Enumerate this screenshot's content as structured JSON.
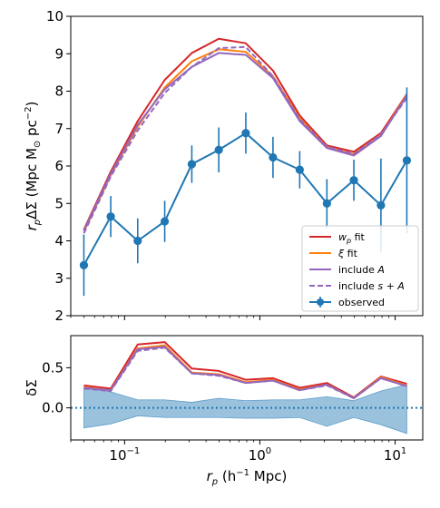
{
  "chart_data": [
    {
      "type": "line",
      "xscale": "log",
      "xlim": [
        0.04,
        16
      ],
      "ylim": [
        2,
        10
      ],
      "yticks": [
        2,
        3,
        4,
        5,
        6,
        7,
        8,
        9,
        10
      ],
      "ylabel_parts": [
        "r",
        "p",
        "ΔΣ (Mpc M",
        "⊙",
        " pc",
        "−2",
        ")"
      ],
      "legend_position": "lower right",
      "x": [
        0.05,
        0.079,
        0.125,
        0.198,
        0.314,
        0.497,
        0.787,
        1.25,
        1.97,
        3.13,
        4.95,
        7.85,
        12.2
      ],
      "series": [
        {
          "key": "wp",
          "label_parts": [
            "w",
            "p",
            " fit"
          ],
          "color": "#d62728",
          "style": "solid",
          "values": [
            4.3,
            5.85,
            7.2,
            8.3,
            9.02,
            9.4,
            9.28,
            8.55,
            7.35,
            6.55,
            6.38,
            6.88,
            7.92
          ]
        },
        {
          "key": "xi",
          "label_parts": [
            "ξ",
            "",
            " fit"
          ],
          "color": "#ff7f0e",
          "style": "solid",
          "values": [
            4.25,
            5.75,
            7.05,
            8.1,
            8.8,
            9.12,
            9.05,
            8.4,
            7.28,
            6.5,
            6.32,
            6.82,
            7.9
          ]
        },
        {
          "key": "A",
          "label_parts": [
            "include ",
            "A",
            ""
          ],
          "color": "#9467bd",
          "style": "solid",
          "values": [
            4.27,
            5.8,
            7.1,
            8.05,
            8.65,
            9.02,
            8.97,
            8.35,
            7.2,
            6.48,
            6.28,
            6.8,
            7.88
          ]
        },
        {
          "key": "sA",
          "label_parts": [
            "include ",
            "s + A",
            ""
          ],
          "color": "#9467bd",
          "style": "dashed",
          "values": [
            4.2,
            5.72,
            6.95,
            7.95,
            8.65,
            9.15,
            9.18,
            8.4,
            7.25,
            6.52,
            6.32,
            6.85,
            7.82
          ]
        }
      ],
      "observed": {
        "label": "observed",
        "color": "#1f77b4",
        "values": [
          3.35,
          4.65,
          4.0,
          4.52,
          6.05,
          6.43,
          6.88,
          6.23,
          5.9,
          5.0,
          5.62,
          4.95,
          6.15
        ],
        "errors": [
          0.82,
          0.55,
          0.6,
          0.55,
          0.5,
          0.6,
          0.55,
          0.55,
          0.5,
          0.65,
          0.55,
          1.25,
          1.95
        ]
      }
    },
    {
      "type": "line",
      "xscale": "log",
      "xlim": [
        0.04,
        16
      ],
      "ylim": [
        -0.4,
        0.9
      ],
      "yticks": [
        0.0,
        0.5
      ],
      "ytick_labels": [
        "0.0",
        "0.5"
      ],
      "ylabel": "δΣ",
      "xticks": [
        0.1,
        1,
        10
      ],
      "xtick_labels": [
        [
          "10",
          "−1"
        ],
        [
          "10",
          "0"
        ],
        [
          "10",
          "1"
        ]
      ],
      "xlabel_parts": [
        "r",
        "p",
        " (h",
        "−1",
        " Mpc)"
      ],
      "zero_line": {
        "color": "#1f77b4",
        "style": "dotted"
      },
      "band": {
        "color": "#1f77b4",
        "opacity": 0.45,
        "upper": [
          0.25,
          0.2,
          0.1,
          0.1,
          0.07,
          0.12,
          0.09,
          0.1,
          0.1,
          0.14,
          0.09,
          0.21,
          0.29
        ],
        "lower": [
          -0.25,
          -0.2,
          -0.1,
          -0.12,
          -0.12,
          -0.12,
          -0.13,
          -0.13,
          -0.12,
          -0.23,
          -0.12,
          -0.21,
          -0.32
        ]
      },
      "series": [
        {
          "color": "#d62728",
          "style": "solid",
          "values": [
            0.28,
            0.24,
            0.79,
            0.82,
            0.49,
            0.46,
            0.35,
            0.37,
            0.25,
            0.31,
            0.13,
            0.39,
            0.3
          ]
        },
        {
          "color": "#ff7f0e",
          "style": "solid",
          "values": [
            0.26,
            0.22,
            0.74,
            0.78,
            0.44,
            0.42,
            0.32,
            0.35,
            0.23,
            0.29,
            0.12,
            0.38,
            0.28
          ]
        },
        {
          "color": "#9467bd",
          "style": "solid",
          "values": [
            0.25,
            0.22,
            0.73,
            0.76,
            0.43,
            0.41,
            0.31,
            0.34,
            0.22,
            0.29,
            0.12,
            0.37,
            0.27
          ]
        },
        {
          "color": "#9467bd",
          "style": "dashed",
          "values": [
            0.24,
            0.21,
            0.71,
            0.75,
            0.43,
            0.4,
            0.31,
            0.34,
            0.22,
            0.28,
            0.12,
            0.37,
            0.27
          ]
        }
      ]
    }
  ]
}
